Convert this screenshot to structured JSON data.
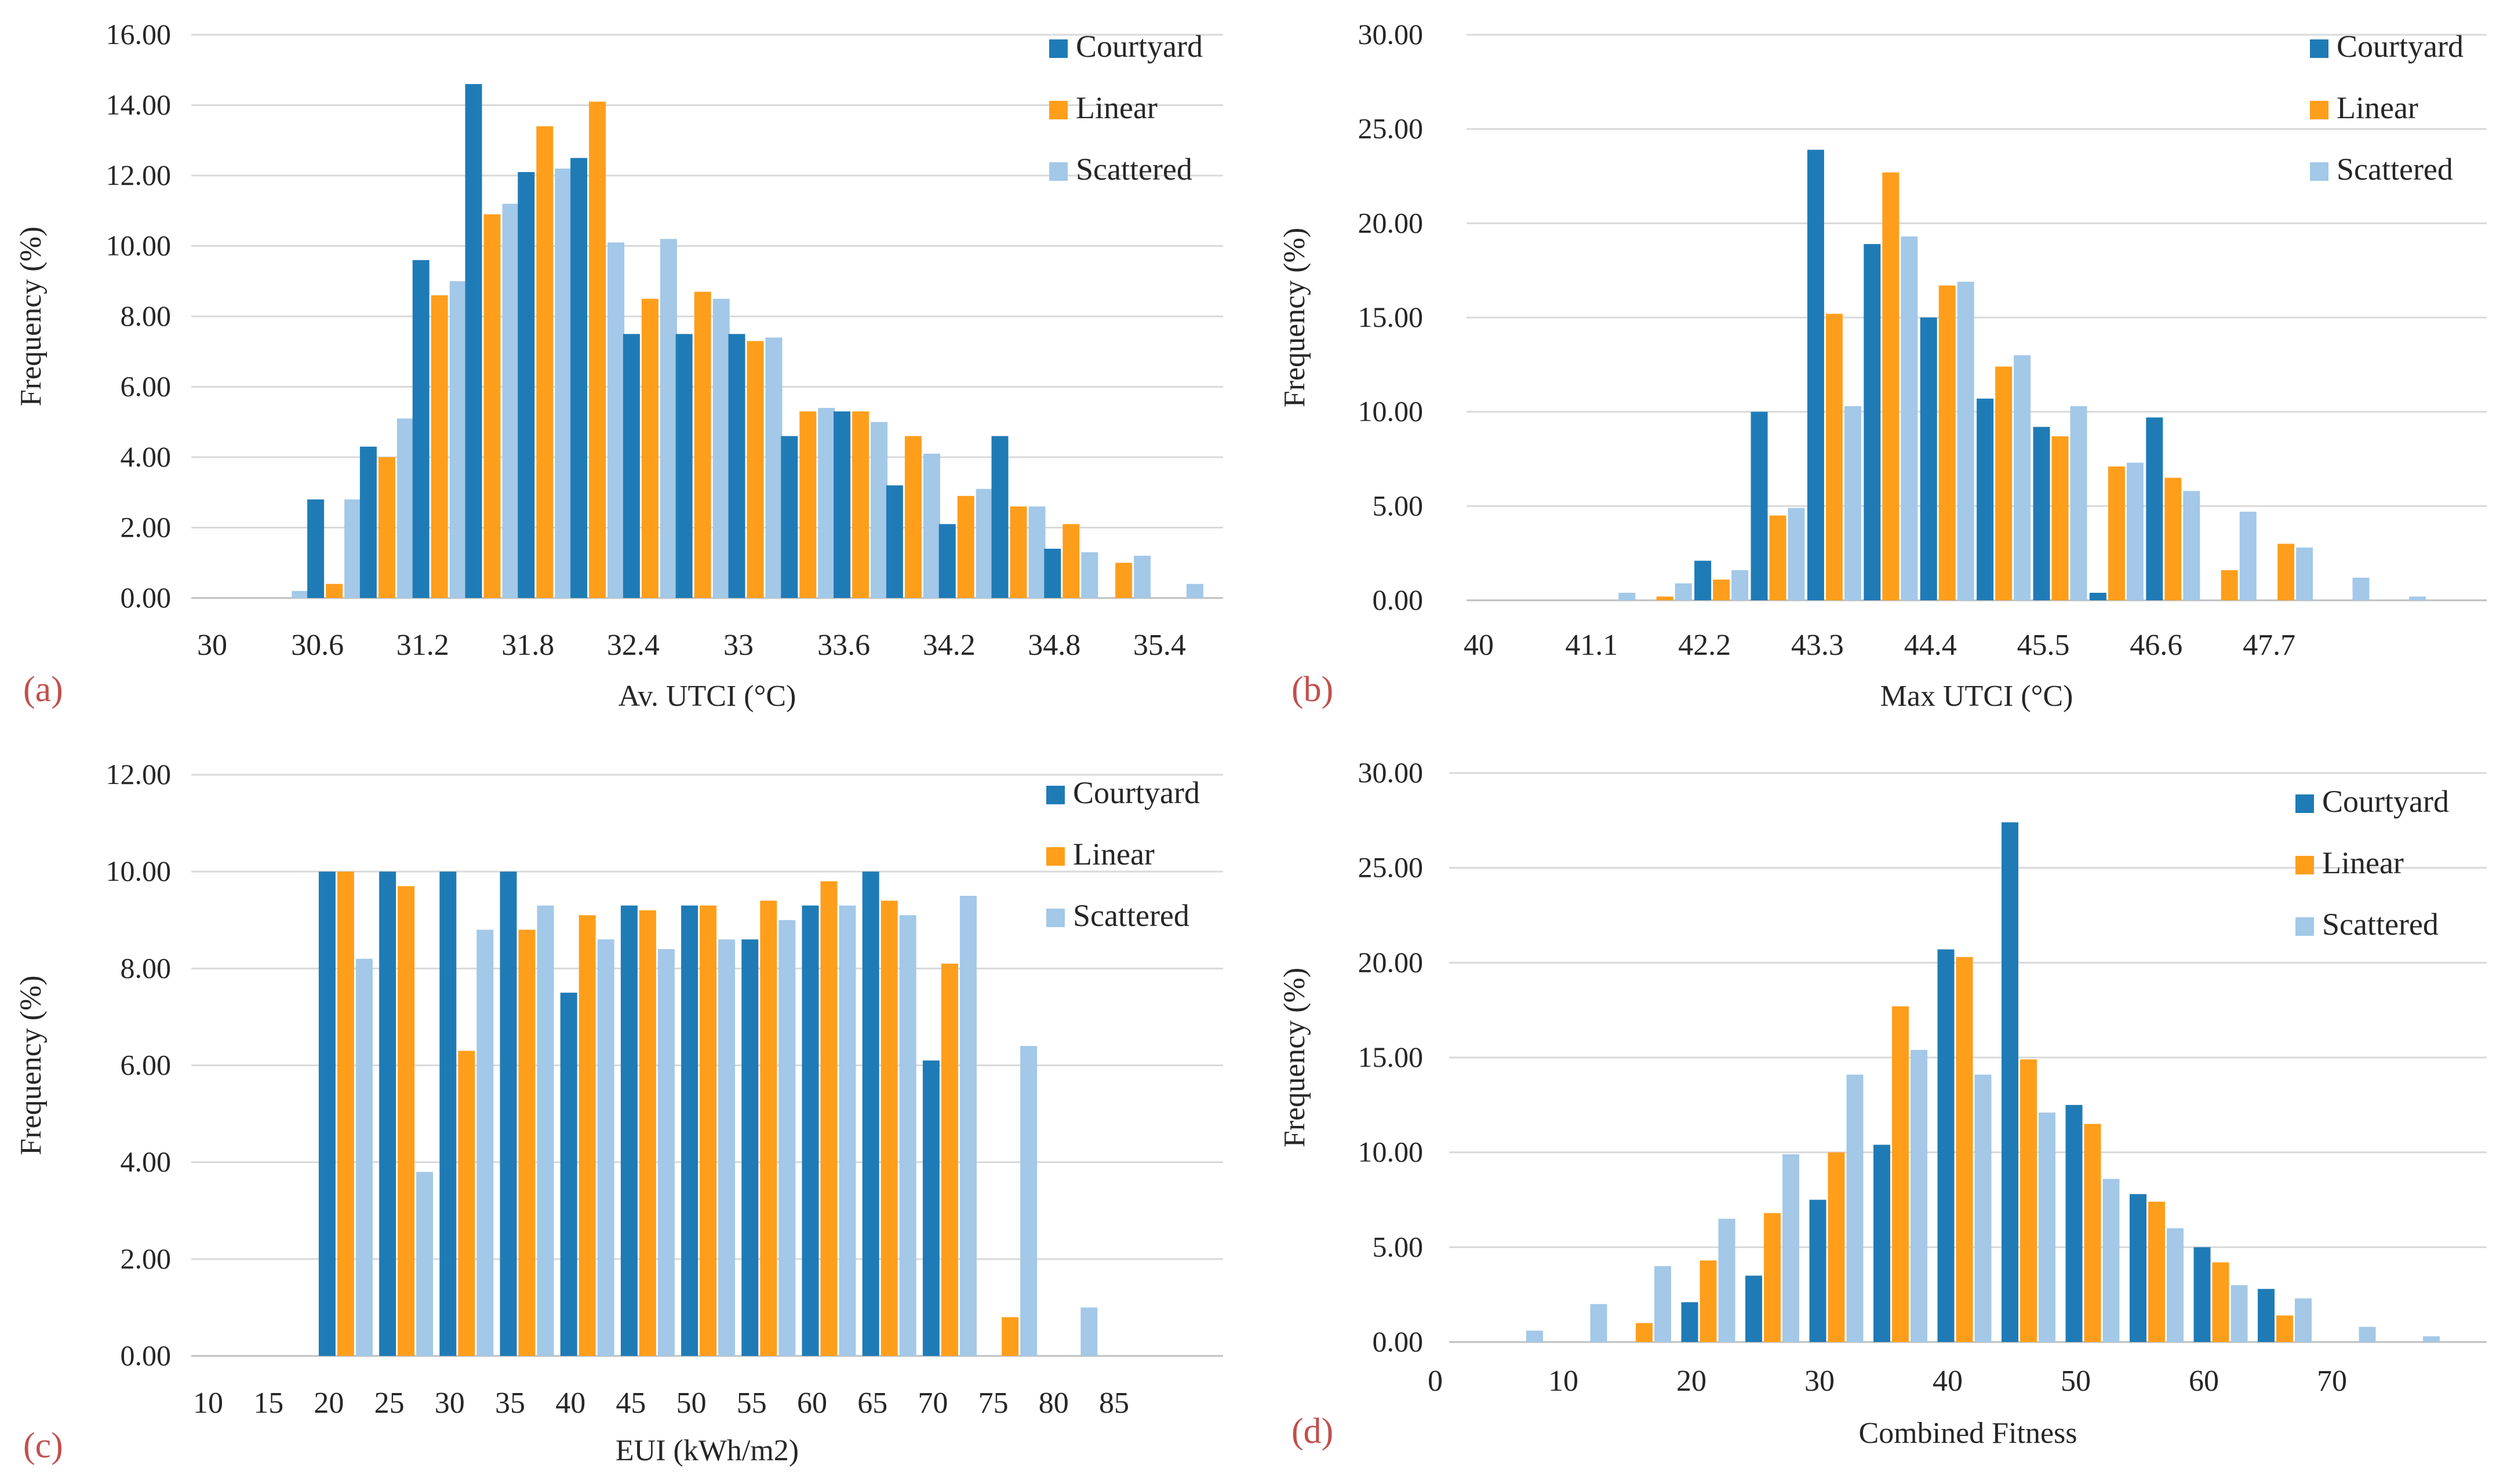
{
  "colors": {
    "courtyard": "#1f7bb6",
    "linear": "#ff9e1b",
    "scattered": "#a3c8e8"
  },
  "chart_data": [
    {
      "type": "bar",
      "panel_label": "(a)",
      "xlabel": "Av. UTCI (°C)",
      "ylabel": "Frequency (%)",
      "ylim": [
        0,
        16
      ],
      "y_ticks": [
        "0.00",
        "2.00",
        "4.00",
        "6.00",
        "8.00",
        "10.00",
        "12.00",
        "14.00",
        "16.00"
      ],
      "x_tick_labels": [
        "30",
        "30.6",
        "31.2",
        "31.8",
        "32.4",
        "33",
        "33.6",
        "34.2",
        "34.8",
        "35.4"
      ],
      "legend": [
        "Courtyard",
        "Linear",
        "Scattered"
      ],
      "categories": [
        "30",
        "30.3",
        "30.6",
        "30.9",
        "31.2",
        "31.5",
        "31.8",
        "32.1",
        "32.4",
        "32.7",
        "33",
        "33.3",
        "33.6",
        "33.9",
        "34.2",
        "34.5",
        "34.8",
        "35.1",
        "35.4"
      ],
      "series": [
        {
          "name": "Courtyard",
          "values": [
            0,
            0,
            2.8,
            4.3,
            9.6,
            14.6,
            12.1,
            12.5,
            7.5,
            7.5,
            7.5,
            4.6,
            5.3,
            3.2,
            2.1,
            4.6,
            1.4,
            0,
            0
          ]
        },
        {
          "name": "Linear",
          "values": [
            0,
            0,
            0.4,
            4.0,
            8.6,
            10.9,
            13.4,
            14.1,
            8.5,
            8.7,
            7.3,
            5.3,
            5.3,
            4.6,
            2.9,
            2.6,
            2.1,
            1.0,
            0
          ]
        },
        {
          "name": "Scattered",
          "values": [
            0,
            0.2,
            2.8,
            5.1,
            9.0,
            11.2,
            12.2,
            10.1,
            10.2,
            8.5,
            7.4,
            5.4,
            5.0,
            4.1,
            3.1,
            2.6,
            1.3,
            1.2,
            0.4
          ]
        }
      ]
    },
    {
      "type": "bar",
      "panel_label": "(b)",
      "xlabel": "Max UTCI (°C)",
      "ylabel": "Frequency (%)",
      "ylim": [
        0,
        30
      ],
      "y_ticks": [
        "0.00",
        "5.00",
        "10.00",
        "15.00",
        "20.00",
        "25.00",
        "30.00"
      ],
      "x_tick_labels": [
        "40",
        "41.1",
        "42.2",
        "43.3",
        "44.4",
        "45.5",
        "46.6",
        "47.7"
      ],
      "legend": [
        "Courtyard",
        "Linear",
        "Scattered"
      ],
      "categories": [
        "40",
        "40.55",
        "41.1",
        "41.65",
        "42.2",
        "42.75",
        "43.3",
        "43.85",
        "44.4",
        "44.95",
        "45.5",
        "46.05",
        "46.6",
        "47.15",
        "47.7",
        "48.25",
        "48.8"
      ],
      "series": [
        {
          "name": "Courtyard",
          "values": [
            0,
            0,
            0,
            0,
            2.1,
            10.0,
            23.9,
            18.9,
            15.0,
            10.7,
            9.2,
            0.4,
            9.7,
            0,
            0,
            0,
            0
          ]
        },
        {
          "name": "Linear",
          "values": [
            0,
            0,
            0,
            0.2,
            1.1,
            4.5,
            15.2,
            22.7,
            16.7,
            12.4,
            8.7,
            7.1,
            6.5,
            1.6,
            3.0,
            0,
            0
          ]
        },
        {
          "name": "Scattered",
          "values": [
            0,
            0,
            0.4,
            0.9,
            1.6,
            4.9,
            10.3,
            19.3,
            16.9,
            13.0,
            10.3,
            7.3,
            5.8,
            4.7,
            2.8,
            1.2,
            0.2
          ]
        }
      ]
    },
    {
      "type": "bar",
      "panel_label": "(c)",
      "xlabel": "EUI (kWh/m2)",
      "ylabel": "Frequency (%)",
      "ylim": [
        0,
        12
      ],
      "y_ticks": [
        "0.00",
        "2.00",
        "4.00",
        "6.00",
        "8.00",
        "10.00",
        "12.00"
      ],
      "x_tick_labels": [
        "10",
        "15",
        "20",
        "25",
        "30",
        "35",
        "40",
        "45",
        "50",
        "55",
        "60",
        "65",
        "70",
        "75",
        "80",
        "85"
      ],
      "legend": [
        "Courtyard",
        "Linear",
        "Scattered"
      ],
      "categories": [
        "10",
        "15",
        "20",
        "25",
        "30",
        "35",
        "40",
        "45",
        "50",
        "55",
        "60",
        "65",
        "70",
        "75",
        "80",
        "85"
      ],
      "series": [
        {
          "name": "Courtyard",
          "values": [
            0,
            0,
            10.0,
            10.0,
            10.0,
            10.0,
            7.5,
            9.3,
            9.3,
            8.6,
            9.3,
            10.0,
            6.1,
            0,
            0,
            0
          ]
        },
        {
          "name": "Linear",
          "values": [
            0,
            0,
            10.0,
            9.7,
            6.3,
            8.8,
            9.1,
            9.2,
            9.3,
            9.4,
            9.8,
            9.4,
            8.1,
            0.8,
            0,
            0
          ]
        },
        {
          "name": "Scattered",
          "values": [
            0,
            0,
            8.2,
            3.8,
            8.8,
            9.3,
            8.6,
            8.4,
            8.6,
            9.0,
            9.3,
            9.1,
            9.5,
            6.4,
            1.0,
            0
          ]
        }
      ]
    },
    {
      "type": "bar",
      "panel_label": "(d)",
      "xlabel": "Combined Fitness",
      "ylabel": "Frequency (%)",
      "ylim": [
        0,
        30
      ],
      "y_ticks": [
        "0.00",
        "5.00",
        "10.00",
        "15.00",
        "20.00",
        "25.00",
        "30.00"
      ],
      "x_tick_labels": [
        "0",
        "10",
        "20",
        "30",
        "40",
        "50",
        "60",
        "70"
      ],
      "legend": [
        "Courtyard",
        "Linear",
        "Scattered"
      ],
      "categories": [
        "0",
        "5",
        "10",
        "15",
        "20",
        "25",
        "30",
        "35",
        "40",
        "45",
        "50",
        "55",
        "60",
        "65",
        "70",
        "75"
      ],
      "series": [
        {
          "name": "Courtyard",
          "values": [
            0,
            0,
            0,
            0,
            2.1,
            3.5,
            7.5,
            10.4,
            20.7,
            27.4,
            12.5,
            7.8,
            5.0,
            2.8,
            0,
            0
          ]
        },
        {
          "name": "Linear",
          "values": [
            0,
            0,
            0,
            1.0,
            4.3,
            6.8,
            10.0,
            17.7,
            20.3,
            14.9,
            11.5,
            7.4,
            4.2,
            1.4,
            0,
            0
          ]
        },
        {
          "name": "Scattered",
          "values": [
            0,
            0.6,
            2.0,
            4.0,
            6.5,
            9.9,
            14.1,
            15.4,
            14.1,
            12.1,
            8.6,
            6.0,
            3.0,
            2.3,
            0.8,
            0.3
          ]
        }
      ]
    }
  ]
}
